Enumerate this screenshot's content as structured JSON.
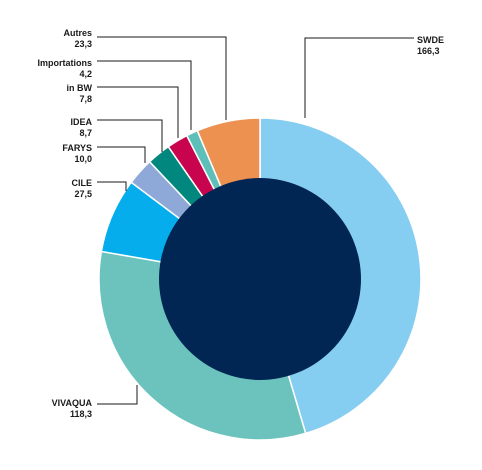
{
  "chart_data": {
    "type": "pie",
    "title": "",
    "unit": "",
    "center_color": "#022654",
    "slices": [
      {
        "label": "SWDE",
        "value": 166.3,
        "color": "#86cdf2"
      },
      {
        "label": "VIVAQUA",
        "value": 118.3,
        "color": "#6cc3bd"
      },
      {
        "label": "CILE",
        "value": 27.5,
        "color": "#05adec"
      },
      {
        "label": "FARYS",
        "value": 10.0,
        "color": "#8ea9d7"
      },
      {
        "label": "IDEA",
        "value": 8.7,
        "color": "#02877f"
      },
      {
        "label": "in BW",
        "value": 7.8,
        "color": "#c9044e"
      },
      {
        "label": "Importations",
        "value": 4.2,
        "color": "#5dbfb8"
      },
      {
        "label": "Autres",
        "value": 23.3,
        "color": "#ed9151"
      }
    ],
    "value_labels": [
      "166,3",
      "118,3",
      "27,5",
      "10,0",
      "8,7",
      "7,8",
      "4,2",
      "23,3"
    ]
  }
}
